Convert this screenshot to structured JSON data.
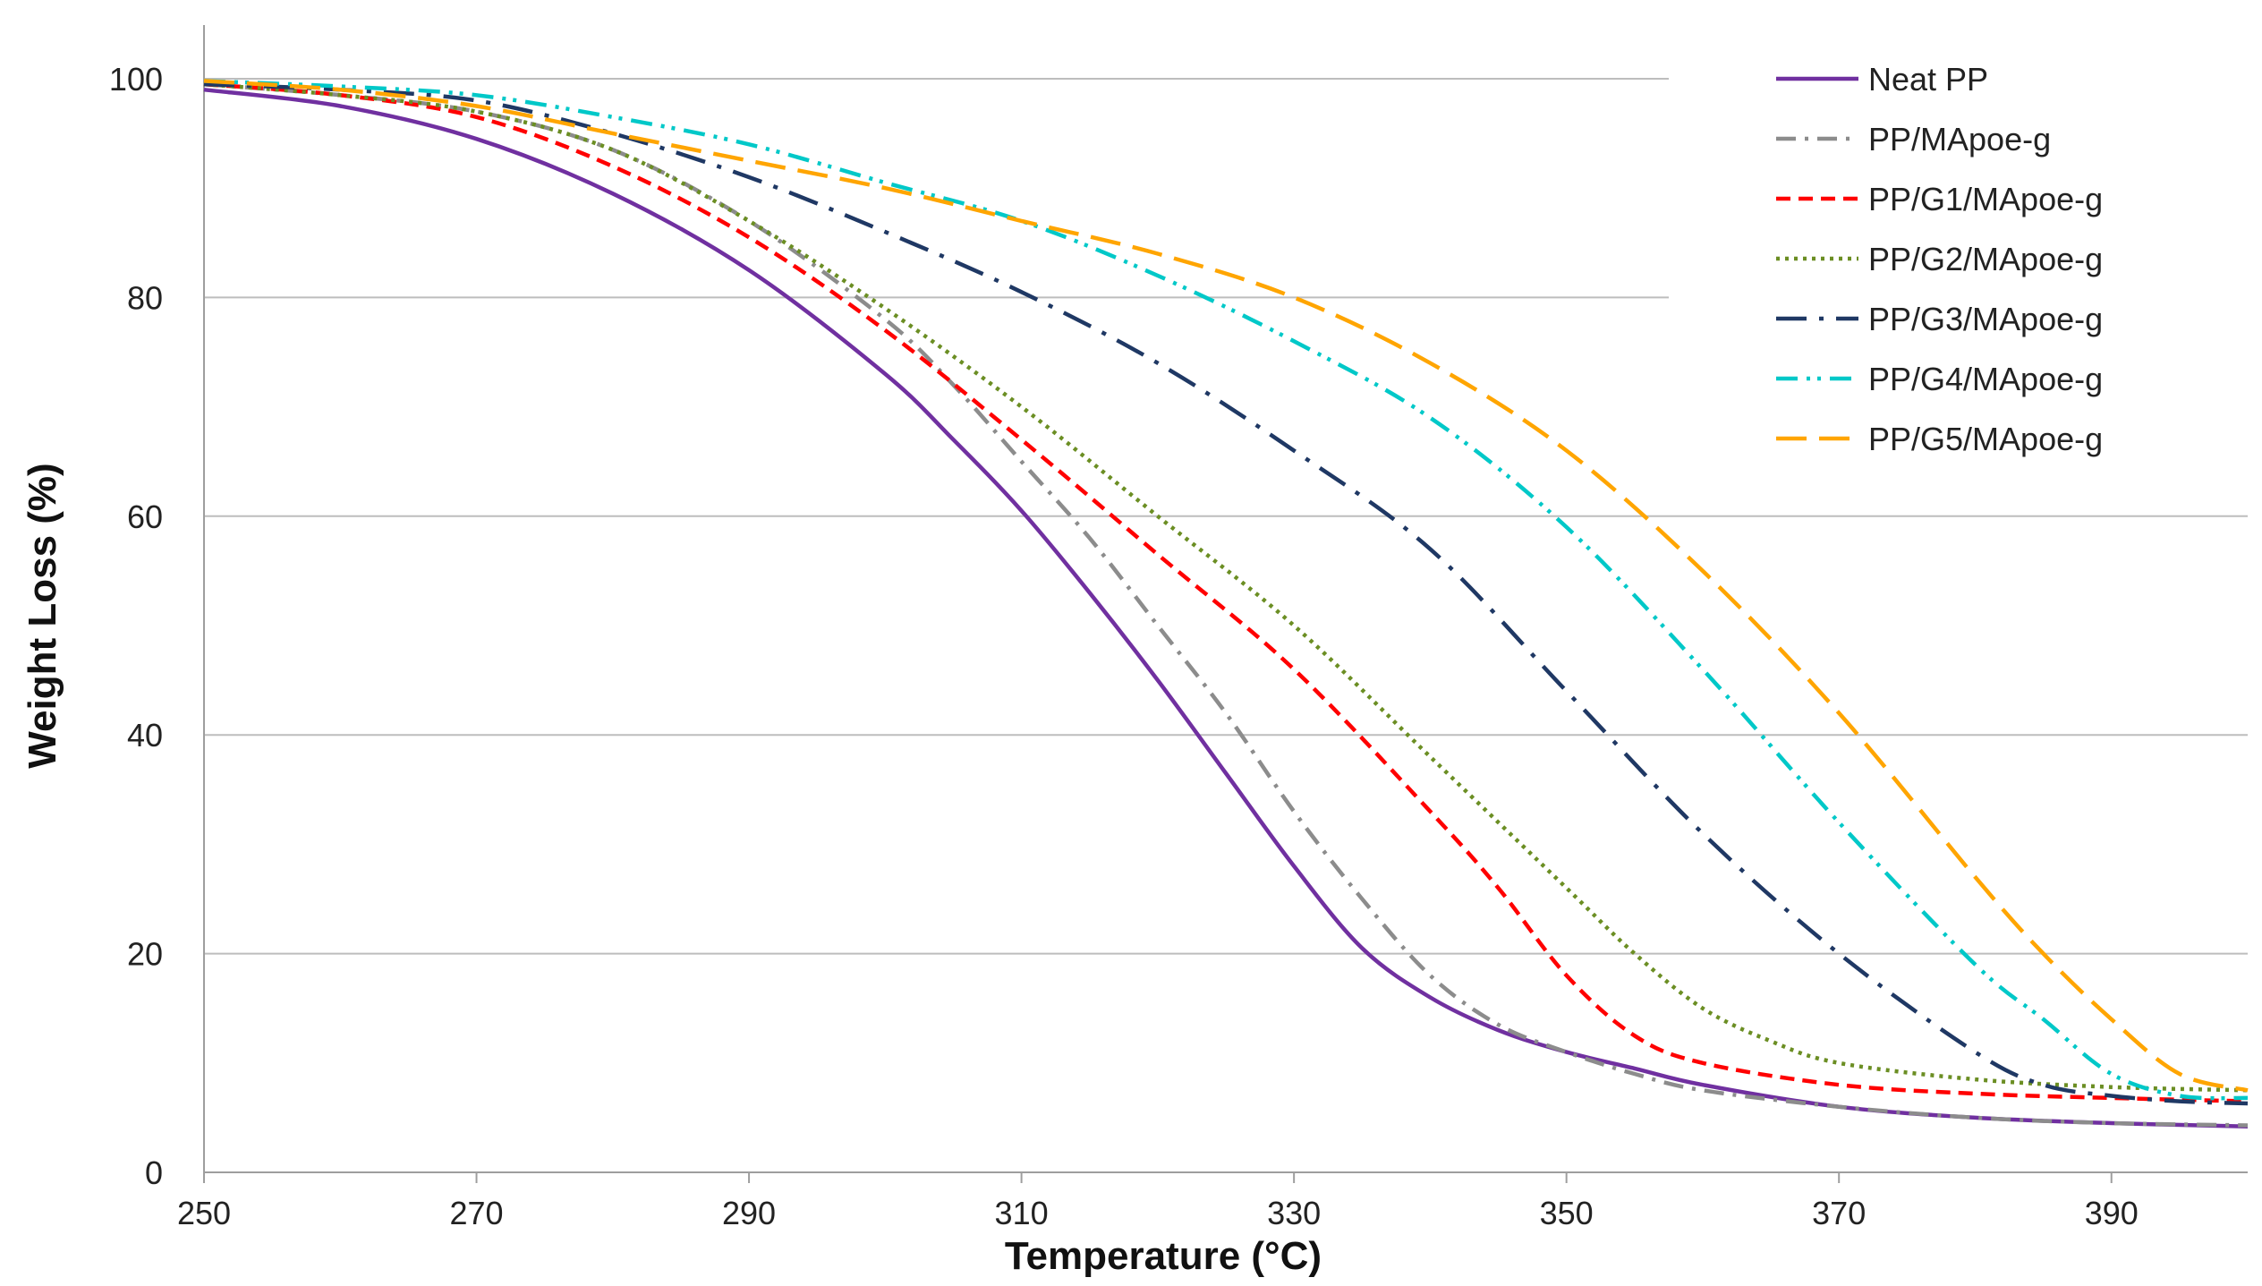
{
  "chart_data": {
    "type": "line",
    "title": "",
    "xlabel": "Temperature (°C)",
    "ylabel": "Weight Loss (%)",
    "xlim": [
      250,
      400
    ],
    "ylim": [
      0,
      105
    ],
    "xticks": [
      250,
      270,
      290,
      310,
      330,
      350,
      370,
      390
    ],
    "yticks": [
      0,
      20,
      40,
      60,
      80,
      100
    ],
    "grid": "horizontal",
    "legend_position": "top-right",
    "series": [
      {
        "name": "Neat PP",
        "color": "#7030a0",
        "dash": "solid",
        "x": [
          250,
          260,
          270,
          280,
          290,
          300,
          305,
          310,
          315,
          320,
          325,
          330,
          335,
          340,
          345,
          350,
          355,
          360,
          370,
          380,
          390,
          400
        ],
        "y": [
          99,
          97.5,
          94.5,
          89.5,
          82.5,
          73,
          67,
          60.5,
          53,
          45,
          36.5,
          28,
          20.5,
          16,
          13,
          11,
          9.5,
          8,
          6,
          5,
          4.5,
          4.2
        ]
      },
      {
        "name": "PP/MApoe-g",
        "color": "#8c8c8c",
        "dash": "dashdot",
        "x": [
          250,
          260,
          270,
          280,
          290,
          300,
          305,
          310,
          315,
          320,
          325,
          330,
          335,
          340,
          345,
          350,
          355,
          360,
          370,
          380,
          390,
          400
        ],
        "y": [
          99.5,
          98.5,
          97,
          93.5,
          87,
          78,
          72,
          65,
          58,
          50,
          42,
          33,
          25,
          18,
          13.5,
          11,
          9,
          7.5,
          6,
          5,
          4.5,
          4.3
        ]
      },
      {
        "name": "PP/G1/MApoe-g",
        "color": "#ff0000",
        "dash": "dash",
        "x": [
          250,
          260,
          270,
          280,
          290,
          300,
          310,
          320,
          330,
          340,
          345,
          350,
          355,
          360,
          370,
          380,
          390,
          400
        ],
        "y": [
          99.5,
          98.5,
          96.5,
          92,
          85.5,
          77,
          67,
          56.5,
          46,
          33,
          26,
          18,
          12.5,
          10,
          8,
          7.2,
          6.8,
          6.5
        ]
      },
      {
        "name": "PP/G2/MApoe-g",
        "color": "#6b8e23",
        "dash": "dot",
        "x": [
          250,
          260,
          270,
          280,
          290,
          300,
          310,
          320,
          330,
          340,
          350,
          355,
          360,
          365,
          370,
          380,
          390,
          400
        ],
        "y": [
          99.5,
          98.5,
          97,
          93.5,
          87,
          79,
          70,
          60,
          50,
          38,
          26,
          20,
          15,
          12,
          10,
          8.5,
          7.8,
          7.5
        ]
      },
      {
        "name": "PP/G3/MApoe-g",
        "color": "#1f3864",
        "dash": "longdashdot",
        "x": [
          250,
          260,
          270,
          280,
          290,
          300,
          310,
          320,
          330,
          340,
          350,
          360,
          370,
          380,
          385,
          390,
          395,
          400
        ],
        "y": [
          99.5,
          99,
          98,
          95,
          91,
          86,
          80.5,
          74,
          66,
          57,
          44,
          31,
          20,
          11,
          8,
          7,
          6.5,
          6.3
        ]
      },
      {
        "name": "PP/G4/MApoe-g",
        "color": "#00c8c8",
        "dash": "dashdotdot",
        "x": [
          250,
          260,
          270,
          280,
          290,
          300,
          310,
          320,
          330,
          340,
          350,
          360,
          370,
          380,
          385,
          390,
          395,
          400
        ],
        "y": [
          99.8,
          99.3,
          98.5,
          96.5,
          94,
          90.5,
          87,
          82,
          76,
          69,
          59,
          46,
          32,
          19,
          14,
          9,
          7,
          6.8
        ]
      },
      {
        "name": "PP/G5/MApoe-g",
        "color": "#ffa500",
        "dash": "longdash",
        "x": [
          250,
          260,
          270,
          280,
          290,
          300,
          310,
          320,
          330,
          340,
          350,
          360,
          370,
          380,
          385,
          390,
          395,
          400
        ],
        "y": [
          99.8,
          99,
          97.5,
          95,
          92.5,
          90,
          87,
          84,
          80,
          74,
          66,
          55,
          42,
          27,
          20,
          14,
          9,
          7.5
        ]
      }
    ]
  }
}
